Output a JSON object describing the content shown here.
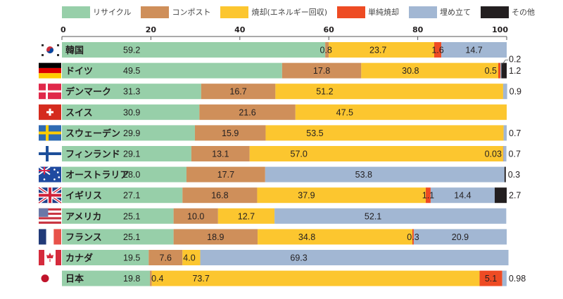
{
  "chart_data": {
    "type": "bar",
    "orientation": "horizontal",
    "stacked": true,
    "title": "",
    "xlabel": "",
    "ylabel": "",
    "xlim": [
      0,
      100
    ],
    "xticks": [
      0,
      20,
      40,
      60,
      80,
      100
    ],
    "grid": false,
    "legend_position": "top",
    "categories": [
      "韓国",
      "ドイツ",
      "デンマーク",
      "スイス",
      "スウェーデン",
      "フィンランド",
      "オーストラリア",
      "イギリス",
      "アメリカ",
      "フランス",
      "カナダ",
      "日本"
    ],
    "flags": [
      "korea",
      "germany",
      "denmark",
      "switzerland",
      "sweden",
      "finland",
      "australia",
      "uk",
      "usa",
      "france",
      "canada",
      "japan"
    ],
    "series": [
      {
        "name": "リサイクル",
        "color": "#97cfa9",
        "values": [
          59.2,
          49.5,
          31.3,
          30.9,
          29.9,
          29.1,
          28.0,
          27.1,
          25.1,
          25.1,
          19.5,
          19.8
        ]
      },
      {
        "name": "コンポスト",
        "color": "#cf8f5a",
        "values": [
          0.8,
          17.8,
          16.7,
          21.6,
          15.9,
          13.1,
          17.7,
          16.8,
          10.0,
          18.9,
          7.6,
          0.4
        ]
      },
      {
        "name": "焼却(エネルギー回収)",
        "color": "#fcc62f",
        "values": [
          23.7,
          30.8,
          51.2,
          47.5,
          53.5,
          57.0,
          0,
          37.9,
          12.7,
          34.8,
          4.0,
          73.7
        ]
      },
      {
        "name": "単純焼却",
        "color": "#ee4b23",
        "values": [
          1.6,
          0.5,
          0,
          0,
          0,
          0.03,
          0,
          1.1,
          0,
          0.3,
          0,
          5.1
        ]
      },
      {
        "name": "埋め立て",
        "color": "#a2b7d3",
        "values": [
          14.7,
          0.2,
          0.9,
          0,
          0.7,
          0.7,
          53.8,
          14.4,
          52.1,
          20.9,
          69.3,
          0.98
        ]
      },
      {
        "name": "その他",
        "color": "#231f20",
        "values": [
          0,
          1.2,
          0,
          0,
          0,
          0,
          0.3,
          2.7,
          0,
          0,
          0,
          0
        ]
      }
    ],
    "data_labels": [
      [
        {
          "s": 0,
          "text": "59.2"
        },
        {
          "s": 1,
          "text": "0.8"
        },
        {
          "s": 2,
          "text": "23.7"
        },
        {
          "s": 3,
          "text": "1.6"
        },
        {
          "s": 4,
          "text": "14.7"
        }
      ],
      [
        {
          "s": 0,
          "text": "49.5"
        },
        {
          "s": 1,
          "text": "17.8"
        },
        {
          "s": 2,
          "text": "30.8"
        },
        {
          "s": 3,
          "text": "0.5"
        },
        {
          "s": 4,
          "text": "0.2",
          "pos": "above-outside"
        },
        {
          "s": 5,
          "text": "1.2",
          "pos": "outside"
        }
      ],
      [
        {
          "s": 0,
          "text": "31.3"
        },
        {
          "s": 1,
          "text": "16.7"
        },
        {
          "s": 2,
          "text": "51.2"
        },
        {
          "s": 4,
          "text": "0.9",
          "pos": "outside"
        }
      ],
      [
        {
          "s": 0,
          "text": "30.9"
        },
        {
          "s": 1,
          "text": "21.6"
        },
        {
          "s": 2,
          "text": "47.5"
        }
      ],
      [
        {
          "s": 0,
          "text": "29.9"
        },
        {
          "s": 1,
          "text": "15.9"
        },
        {
          "s": 2,
          "text": "53.5"
        },
        {
          "s": 4,
          "text": "0.7",
          "pos": "outside"
        }
      ],
      [
        {
          "s": 0,
          "text": "29.1"
        },
        {
          "s": 1,
          "text": "13.1"
        },
        {
          "s": 2,
          "text": "57.0"
        },
        {
          "s": 3,
          "text": "0.03",
          "pos": "inside-right"
        },
        {
          "s": 4,
          "text": "0.7",
          "pos": "outside"
        }
      ],
      [
        {
          "s": 0,
          "text": "28.0"
        },
        {
          "s": 1,
          "text": "17.7"
        },
        {
          "s": 4,
          "text": "53.8"
        },
        {
          "s": 5,
          "text": "0.3",
          "pos": "outside"
        }
      ],
      [
        {
          "s": 0,
          "text": "27.1"
        },
        {
          "s": 1,
          "text": "16.8"
        },
        {
          "s": 2,
          "text": "37.9"
        },
        {
          "s": 3,
          "text": "1.1"
        },
        {
          "s": 4,
          "text": "14.4"
        },
        {
          "s": 5,
          "text": "2.7",
          "pos": "outside"
        }
      ],
      [
        {
          "s": 0,
          "text": "25.1"
        },
        {
          "s": 1,
          "text": "10.0"
        },
        {
          "s": 2,
          "text": "12.7"
        },
        {
          "s": 4,
          "text": "52.1"
        }
      ],
      [
        {
          "s": 0,
          "text": "25.1"
        },
        {
          "s": 1,
          "text": "18.9"
        },
        {
          "s": 2,
          "text": "34.8"
        },
        {
          "s": 3,
          "text": "0.3"
        },
        {
          "s": 4,
          "text": "20.9"
        }
      ],
      [
        {
          "s": 0,
          "text": "19.5"
        },
        {
          "s": 1,
          "text": "7.6"
        },
        {
          "s": 2,
          "text": "4.0"
        },
        {
          "s": 4,
          "text": "69.3"
        }
      ],
      [
        {
          "s": 0,
          "text": "19.8"
        },
        {
          "s": 1,
          "text": "0.4"
        },
        {
          "s": 2,
          "text": "73.7"
        },
        {
          "s": 3,
          "text": "5.1"
        },
        {
          "s": 4,
          "text": "0.98",
          "pos": "outside"
        }
      ]
    ]
  }
}
